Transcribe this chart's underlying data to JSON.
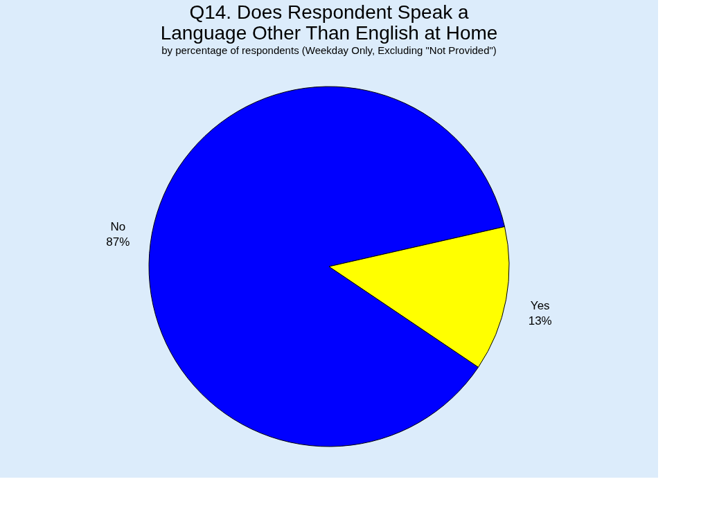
{
  "chart_data": {
    "type": "pie",
    "title": "Q14. Does Respondent Speak a Language Other Than English at Home",
    "subtitle": "by percentage of respondents (Weekday Only, Excluding \"Not Provided\")",
    "categories": [
      "No",
      "Yes"
    ],
    "values": [
      87,
      13
    ],
    "colors": [
      "#0000ff",
      "#ffff00"
    ],
    "value_labels": [
      "87%",
      "13%"
    ],
    "legend": false
  }
}
